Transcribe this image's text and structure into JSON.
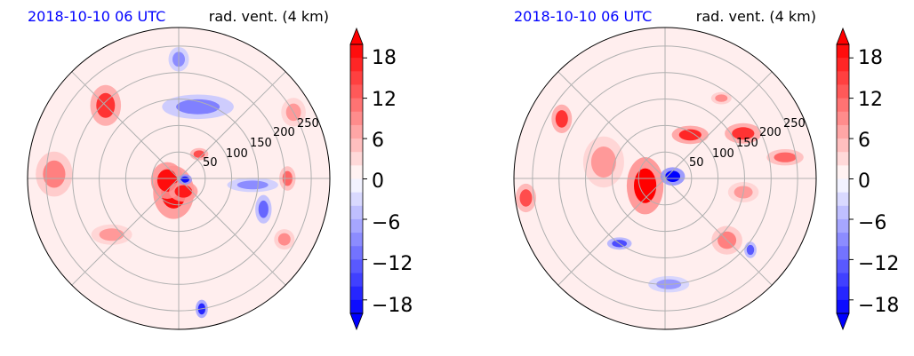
{
  "chart_data": [
    {
      "type": "heatmap",
      "projection": "polar",
      "title_left": "2018-10-10 06 UTC",
      "title_right": "rad. vent. (4 km)",
      "title_left_color": "#0000ff",
      "radial_ticks": [
        "50",
        "100",
        "150",
        "200",
        "250"
      ],
      "radial_values": [
        50,
        100,
        150,
        200,
        250
      ],
      "rmax": 285,
      "colorbar": {
        "ticks": [
          "18",
          "12",
          "6",
          "0",
          "−6",
          "−12",
          "−18"
        ],
        "tick_values": [
          18,
          12,
          6,
          0,
          -6,
          -12,
          -18
        ],
        "range": [
          -20,
          20
        ],
        "extend": "both",
        "cmap": "bwr"
      },
      "features": [
        {
          "kind": "blob",
          "az": 200,
          "r": 28,
          "v": 19,
          "rx": 20,
          "ry": 26
        },
        {
          "kind": "blob",
          "az": 260,
          "r": 22,
          "v": 19,
          "rx": 16,
          "ry": 18
        },
        {
          "kind": "blob",
          "az": 160,
          "r": 26,
          "v": 18,
          "rx": 14,
          "ry": 10
        },
        {
          "kind": "blob",
          "az": 100,
          "r": 12,
          "v": -19,
          "rx": 7,
          "ry": 5
        },
        {
          "kind": "blob",
          "az": 40,
          "r": 60,
          "v": 14,
          "rx": 9,
          "ry": 6
        },
        {
          "kind": "blob",
          "az": 315,
          "r": 195,
          "v": 16,
          "rx": 15,
          "ry": 20
        },
        {
          "kind": "blob",
          "az": 272,
          "r": 235,
          "v": 10,
          "rx": 18,
          "ry": 22
        },
        {
          "kind": "blob",
          "az": 90,
          "r": 205,
          "v": 12,
          "rx": 8,
          "ry": 12
        },
        {
          "kind": "blob",
          "az": 120,
          "r": 230,
          "v": 9,
          "rx": 10,
          "ry": 10
        },
        {
          "kind": "blob",
          "az": 230,
          "r": 165,
          "v": 8,
          "rx": 20,
          "ry": 10
        },
        {
          "kind": "blob",
          "az": 15,
          "r": 140,
          "v": -10,
          "rx": 35,
          "ry": 12
        },
        {
          "kind": "blob",
          "az": 0,
          "r": 225,
          "v": -9,
          "rx": 10,
          "ry": 12
        },
        {
          "kind": "blob",
          "az": 95,
          "r": 140,
          "v": -9,
          "rx": 25,
          "ry": 7
        },
        {
          "kind": "blob",
          "az": 170,
          "r": 250,
          "v": -17,
          "rx": 6,
          "ry": 9
        },
        {
          "kind": "blob",
          "az": 110,
          "r": 170,
          "v": -12,
          "rx": 8,
          "ry": 14
        },
        {
          "kind": "blob",
          "az": 60,
          "r": 250,
          "v": 8,
          "rx": 12,
          "ry": 14
        }
      ]
    },
    {
      "type": "heatmap",
      "projection": "polar",
      "title_left": "2018-10-10 06 UTC",
      "title_right": "rad. vent. (4 km)",
      "title_left_color": "#0000ff",
      "radial_ticks": [
        "50",
        "100",
        "150",
        "200",
        "250"
      ],
      "radial_values": [
        50,
        100,
        150,
        200,
        250
      ],
      "rmax": 285,
      "colorbar": {
        "ticks": [
          "18",
          "12",
          "6",
          "0",
          "−6",
          "−12",
          "−18"
        ],
        "tick_values": [
          18,
          12,
          6,
          0,
          -6,
          -12,
          -18
        ],
        "range": [
          -20,
          20
        ],
        "extend": "both",
        "cmap": "bwr"
      },
      "features": [
        {
          "kind": "blob",
          "az": 250,
          "r": 40,
          "v": 20,
          "rx": 18,
          "ry": 28
        },
        {
          "kind": "blob",
          "az": 75,
          "r": 15,
          "v": -20,
          "rx": 12,
          "ry": 9
        },
        {
          "kind": "blob",
          "az": 30,
          "r": 95,
          "v": 17,
          "rx": 18,
          "ry": 9
        },
        {
          "kind": "blob",
          "az": 60,
          "r": 170,
          "v": 16,
          "rx": 18,
          "ry": 10
        },
        {
          "kind": "blob",
          "az": 300,
          "r": 225,
          "v": 16,
          "rx": 10,
          "ry": 14
        },
        {
          "kind": "blob",
          "az": 262,
          "r": 265,
          "v": 14,
          "rx": 10,
          "ry": 14
        },
        {
          "kind": "blob",
          "az": 80,
          "r": 230,
          "v": 12,
          "rx": 18,
          "ry": 8
        },
        {
          "kind": "blob",
          "az": 135,
          "r": 165,
          "v": 10,
          "rx": 15,
          "ry": 14
        },
        {
          "kind": "blob",
          "az": 215,
          "r": 150,
          "v": -14,
          "rx": 12,
          "ry": 6
        },
        {
          "kind": "blob",
          "az": 130,
          "r": 210,
          "v": -13,
          "rx": 6,
          "ry": 8
        },
        {
          "kind": "blob",
          "az": 178,
          "r": 200,
          "v": -8,
          "rx": 20,
          "ry": 8
        },
        {
          "kind": "blob",
          "az": 35,
          "r": 185,
          "v": 9,
          "rx": 10,
          "ry": 6
        },
        {
          "kind": "blob",
          "az": 285,
          "r": 120,
          "v": 8,
          "rx": 20,
          "ry": 25
        },
        {
          "kind": "blob",
          "az": 100,
          "r": 150,
          "v": 8,
          "rx": 15,
          "ry": 10
        }
      ]
    }
  ]
}
